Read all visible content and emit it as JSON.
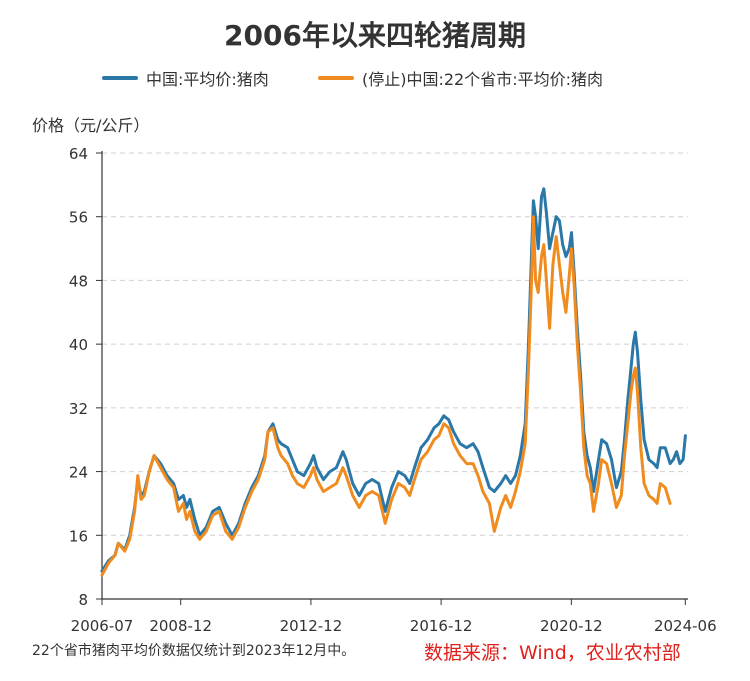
{
  "chart_data": {
    "type": "line",
    "title": "2006年以来四轮猪周期",
    "ylabel": "价格（元/公斤）",
    "xlabel": "",
    "ylim": [
      8,
      64
    ],
    "yticks": [
      8,
      16,
      24,
      32,
      40,
      48,
      56,
      64
    ],
    "xlim": [
      2006.5,
      2024.5
    ],
    "xticks": [
      {
        "label": "2006-07",
        "value": 2006.5
      },
      {
        "label": "2008-12",
        "value": 2008.917
      },
      {
        "label": "2012-12",
        "value": 2012.917
      },
      {
        "label": "2016-12",
        "value": 2016.917
      },
      {
        "label": "2020-12",
        "value": 2020.917
      },
      {
        "label": "2024-06",
        "value": 2024.417
      }
    ],
    "grid": "horizontal-dashed",
    "legend_position": "top",
    "series": [
      {
        "name": "中国:平均价:猪肉",
        "color": "#2b78a8",
        "points": [
          [
            2006.5,
            11.5
          ],
          [
            2006.7,
            12.8
          ],
          [
            2006.9,
            13.5
          ],
          [
            2007.0,
            15.0
          ],
          [
            2007.2,
            14.2
          ],
          [
            2007.35,
            16.0
          ],
          [
            2007.5,
            19.5
          ],
          [
            2007.6,
            23.0
          ],
          [
            2007.7,
            21.0
          ],
          [
            2007.8,
            21.5
          ],
          [
            2007.95,
            24.0
          ],
          [
            2008.1,
            26.0
          ],
          [
            2008.3,
            25.0
          ],
          [
            2008.5,
            23.5
          ],
          [
            2008.7,
            22.5
          ],
          [
            2008.85,
            20.5
          ],
          [
            2009.0,
            21.0
          ],
          [
            2009.1,
            19.5
          ],
          [
            2009.2,
            20.5
          ],
          [
            2009.35,
            18.0
          ],
          [
            2009.5,
            16.0
          ],
          [
            2009.7,
            17.0
          ],
          [
            2009.9,
            19.0
          ],
          [
            2010.1,
            19.5
          ],
          [
            2010.3,
            17.5
          ],
          [
            2010.5,
            16.0
          ],
          [
            2010.7,
            17.5
          ],
          [
            2010.9,
            20.0
          ],
          [
            2011.1,
            22.0
          ],
          [
            2011.3,
            23.5
          ],
          [
            2011.5,
            26.0
          ],
          [
            2011.6,
            29.0
          ],
          [
            2011.75,
            30.0
          ],
          [
            2011.9,
            28.0
          ],
          [
            2012.0,
            27.5
          ],
          [
            2012.2,
            27.0
          ],
          [
            2012.35,
            25.5
          ],
          [
            2012.5,
            24.0
          ],
          [
            2012.7,
            23.5
          ],
          [
            2012.9,
            25.0
          ],
          [
            2013.0,
            26.0
          ],
          [
            2013.1,
            24.5
          ],
          [
            2013.3,
            23.0
          ],
          [
            2013.5,
            24.0
          ],
          [
            2013.7,
            24.5
          ],
          [
            2013.9,
            26.5
          ],
          [
            2014.0,
            25.5
          ],
          [
            2014.2,
            22.5
          ],
          [
            2014.4,
            21.0
          ],
          [
            2014.6,
            22.5
          ],
          [
            2014.8,
            23.0
          ],
          [
            2015.0,
            22.5
          ],
          [
            2015.2,
            19.0
          ],
          [
            2015.4,
            22.0
          ],
          [
            2015.6,
            24.0
          ],
          [
            2015.8,
            23.5
          ],
          [
            2015.95,
            22.5
          ],
          [
            2016.1,
            24.5
          ],
          [
            2016.3,
            27.0
          ],
          [
            2016.5,
            28.0
          ],
          [
            2016.7,
            29.5
          ],
          [
            2016.85,
            30.0
          ],
          [
            2017.0,
            31.0
          ],
          [
            2017.15,
            30.5
          ],
          [
            2017.3,
            29.0
          ],
          [
            2017.5,
            27.5
          ],
          [
            2017.7,
            27.0
          ],
          [
            2017.9,
            27.5
          ],
          [
            2018.05,
            26.5
          ],
          [
            2018.2,
            24.5
          ],
          [
            2018.4,
            22.0
          ],
          [
            2018.55,
            21.5
          ],
          [
            2018.75,
            22.5
          ],
          [
            2018.9,
            23.5
          ],
          [
            2019.05,
            22.5
          ],
          [
            2019.2,
            23.5
          ],
          [
            2019.35,
            26.0
          ],
          [
            2019.5,
            30.0
          ],
          [
            2019.6,
            40.0
          ],
          [
            2019.7,
            52.0
          ],
          [
            2019.75,
            58.0
          ],
          [
            2019.82,
            56.0
          ],
          [
            2019.9,
            52.0
          ],
          [
            2020.0,
            58.5
          ],
          [
            2020.07,
            59.5
          ],
          [
            2020.15,
            56.5
          ],
          [
            2020.25,
            52.0
          ],
          [
            2020.35,
            54.0
          ],
          [
            2020.45,
            56.0
          ],
          [
            2020.55,
            55.5
          ],
          [
            2020.65,
            52.5
          ],
          [
            2020.75,
            51.0
          ],
          [
            2020.85,
            52.0
          ],
          [
            2020.92,
            54.0
          ],
          [
            2021.0,
            49.0
          ],
          [
            2021.1,
            42.0
          ],
          [
            2021.2,
            36.0
          ],
          [
            2021.3,
            29.0
          ],
          [
            2021.4,
            26.0
          ],
          [
            2021.5,
            24.5
          ],
          [
            2021.6,
            21.5
          ],
          [
            2021.75,
            25.5
          ],
          [
            2021.85,
            28.0
          ],
          [
            2022.0,
            27.5
          ],
          [
            2022.15,
            25.5
          ],
          [
            2022.3,
            22.0
          ],
          [
            2022.45,
            24.0
          ],
          [
            2022.55,
            28.0
          ],
          [
            2022.65,
            33.0
          ],
          [
            2022.75,
            37.0
          ],
          [
            2022.82,
            40.0
          ],
          [
            2022.88,
            41.5
          ],
          [
            2022.95,
            39.0
          ],
          [
            2023.05,
            33.0
          ],
          [
            2023.15,
            28.0
          ],
          [
            2023.3,
            25.5
          ],
          [
            2023.45,
            25.0
          ],
          [
            2023.55,
            24.5
          ],
          [
            2023.65,
            27.0
          ],
          [
            2023.8,
            27.0
          ],
          [
            2023.95,
            25.0
          ],
          [
            2024.05,
            25.5
          ],
          [
            2024.15,
            26.5
          ],
          [
            2024.25,
            25.0
          ],
          [
            2024.35,
            25.5
          ],
          [
            2024.42,
            28.5
          ]
        ]
      },
      {
        "name": "(停止)中国:22个省市:平均价:猪肉",
        "color": "#f08c1f",
        "points": [
          [
            2006.5,
            11.0
          ],
          [
            2006.7,
            12.5
          ],
          [
            2006.9,
            13.5
          ],
          [
            2007.0,
            15.0
          ],
          [
            2007.2,
            14.0
          ],
          [
            2007.35,
            15.5
          ],
          [
            2007.5,
            19.0
          ],
          [
            2007.6,
            23.5
          ],
          [
            2007.7,
            20.5
          ],
          [
            2007.8,
            21.0
          ],
          [
            2007.95,
            24.0
          ],
          [
            2008.1,
            26.0
          ],
          [
            2008.3,
            24.5
          ],
          [
            2008.5,
            23.0
          ],
          [
            2008.7,
            22.0
          ],
          [
            2008.85,
            19.0
          ],
          [
            2009.0,
            20.0
          ],
          [
            2009.1,
            18.0
          ],
          [
            2009.2,
            19.0
          ],
          [
            2009.35,
            16.5
          ],
          [
            2009.5,
            15.5
          ],
          [
            2009.7,
            16.5
          ],
          [
            2009.9,
            18.5
          ],
          [
            2010.1,
            19.0
          ],
          [
            2010.3,
            16.5
          ],
          [
            2010.5,
            15.5
          ],
          [
            2010.7,
            17.0
          ],
          [
            2010.9,
            19.5
          ],
          [
            2011.1,
            21.5
          ],
          [
            2011.3,
            23.0
          ],
          [
            2011.5,
            25.5
          ],
          [
            2011.6,
            29.0
          ],
          [
            2011.75,
            29.5
          ],
          [
            2011.9,
            27.0
          ],
          [
            2012.0,
            26.0
          ],
          [
            2012.2,
            25.0
          ],
          [
            2012.35,
            23.5
          ],
          [
            2012.5,
            22.5
          ],
          [
            2012.7,
            22.0
          ],
          [
            2012.9,
            23.5
          ],
          [
            2013.0,
            24.5
          ],
          [
            2013.1,
            23.0
          ],
          [
            2013.3,
            21.5
          ],
          [
            2013.5,
            22.0
          ],
          [
            2013.7,
            22.5
          ],
          [
            2013.9,
            24.5
          ],
          [
            2014.0,
            23.5
          ],
          [
            2014.2,
            21.0
          ],
          [
            2014.4,
            19.5
          ],
          [
            2014.6,
            21.0
          ],
          [
            2014.8,
            21.5
          ],
          [
            2015.0,
            21.0
          ],
          [
            2015.2,
            17.5
          ],
          [
            2015.4,
            20.5
          ],
          [
            2015.6,
            22.5
          ],
          [
            2015.8,
            22.0
          ],
          [
            2015.95,
            21.0
          ],
          [
            2016.1,
            23.0
          ],
          [
            2016.3,
            25.5
          ],
          [
            2016.5,
            26.5
          ],
          [
            2016.7,
            28.0
          ],
          [
            2016.85,
            28.5
          ],
          [
            2017.0,
            30.0
          ],
          [
            2017.15,
            29.5
          ],
          [
            2017.3,
            27.5
          ],
          [
            2017.5,
            26.0
          ],
          [
            2017.7,
            25.0
          ],
          [
            2017.9,
            25.0
          ],
          [
            2018.05,
            23.5
          ],
          [
            2018.2,
            21.5
          ],
          [
            2018.4,
            20.0
          ],
          [
            2018.55,
            16.5
          ],
          [
            2018.75,
            19.5
          ],
          [
            2018.9,
            21.0
          ],
          [
            2019.05,
            19.5
          ],
          [
            2019.2,
            21.5
          ],
          [
            2019.35,
            24.0
          ],
          [
            2019.5,
            27.5
          ],
          [
            2019.6,
            37.0
          ],
          [
            2019.7,
            48.5
          ],
          [
            2019.75,
            56.0
          ],
          [
            2019.82,
            48.0
          ],
          [
            2019.9,
            46.5
          ],
          [
            2020.0,
            51.0
          ],
          [
            2020.07,
            52.5
          ],
          [
            2020.15,
            48.0
          ],
          [
            2020.25,
            42.0
          ],
          [
            2020.35,
            50.0
          ],
          [
            2020.45,
            53.5
          ],
          [
            2020.55,
            50.0
          ],
          [
            2020.65,
            46.5
          ],
          [
            2020.75,
            44.0
          ],
          [
            2020.85,
            48.5
          ],
          [
            2020.92,
            52.0
          ],
          [
            2021.0,
            47.5
          ],
          [
            2021.1,
            40.0
          ],
          [
            2021.2,
            34.0
          ],
          [
            2021.3,
            27.0
          ],
          [
            2021.4,
            23.5
          ],
          [
            2021.5,
            22.5
          ],
          [
            2021.6,
            19.0
          ],
          [
            2021.75,
            22.5
          ],
          [
            2021.85,
            25.5
          ],
          [
            2022.0,
            25.0
          ],
          [
            2022.15,
            22.5
          ],
          [
            2022.3,
            19.5
          ],
          [
            2022.45,
            21.0
          ],
          [
            2022.55,
            26.0
          ],
          [
            2022.65,
            30.0
          ],
          [
            2022.75,
            34.0
          ],
          [
            2022.82,
            36.0
          ],
          [
            2022.88,
            37.0
          ],
          [
            2022.95,
            34.0
          ],
          [
            2023.05,
            27.0
          ],
          [
            2023.15,
            22.5
          ],
          [
            2023.3,
            21.0
          ],
          [
            2023.45,
            20.5
          ],
          [
            2023.55,
            20.0
          ],
          [
            2023.65,
            22.5
          ],
          [
            2023.8,
            22.0
          ],
          [
            2023.95,
            20.0
          ]
        ]
      }
    ]
  },
  "footnote": "22个省市猪肉平均价数据仅统计到2023年12月中。",
  "source": "数据来源：Wind，农业农村部"
}
